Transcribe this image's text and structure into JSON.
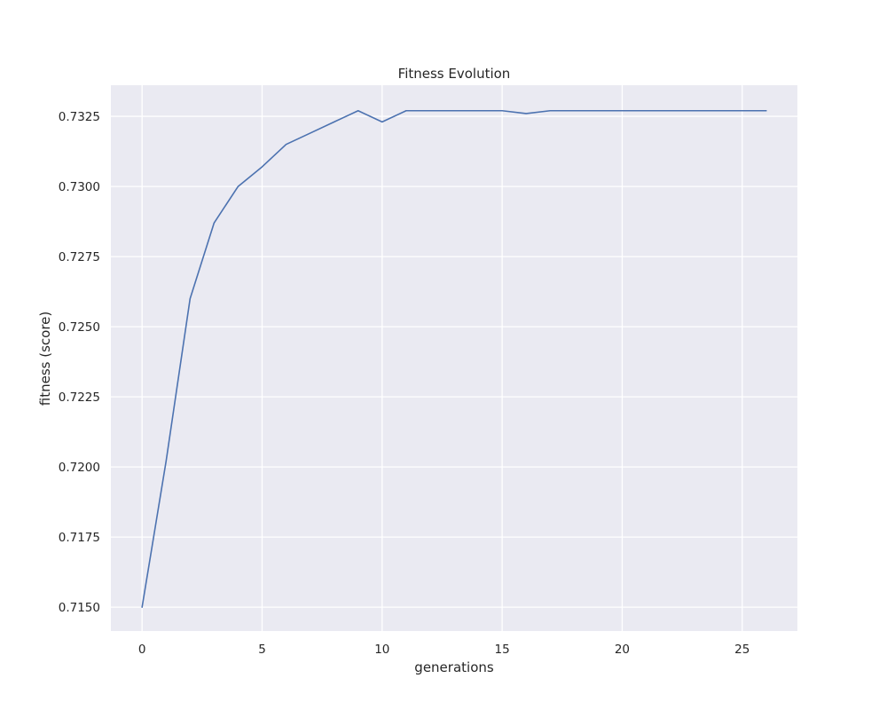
{
  "chart_data": {
    "type": "line",
    "title": "Fitness Evolution",
    "xlabel": "generations",
    "ylabel": "fitness (score)",
    "xlim": [
      -1.3,
      27.3
    ],
    "ylim": [
      0.71415,
      0.73361
    ],
    "xticks": [
      0,
      5,
      10,
      15,
      20,
      25
    ],
    "yticks": [
      0.715,
      0.7175,
      0.72,
      0.7225,
      0.725,
      0.7275,
      0.73,
      0.7325
    ],
    "xtick_labels": [
      "0",
      "5",
      "10",
      "15",
      "20",
      "25"
    ],
    "ytick_labels": [
      "0.7150",
      "0.7175",
      "0.7200",
      "0.7225",
      "0.7250",
      "0.7275",
      "0.7300",
      "0.7325"
    ],
    "grid": true,
    "legend": "none",
    "colors": {
      "line": "#4c72b0",
      "plot_background": "#eaeaf2",
      "grid": "#ffffff"
    },
    "series": [
      {
        "x": [
          0,
          1,
          2,
          3,
          4,
          5,
          6,
          7,
          8,
          9,
          10,
          11,
          12,
          13,
          14,
          15,
          16,
          17,
          18,
          19,
          20,
          21,
          22,
          23,
          24,
          25,
          26
        ],
        "values": [
          0.715,
          0.7202,
          0.726,
          0.7287,
          0.73,
          0.7307,
          0.7315,
          0.7319,
          0.7323,
          0.7327,
          0.7323,
          0.7327,
          0.7327,
          0.7327,
          0.7327,
          0.7327,
          0.7326,
          0.7327,
          0.7327,
          0.7327,
          0.7327,
          0.7327,
          0.7327,
          0.7327,
          0.7327,
          0.7327,
          0.7327
        ]
      }
    ]
  }
}
